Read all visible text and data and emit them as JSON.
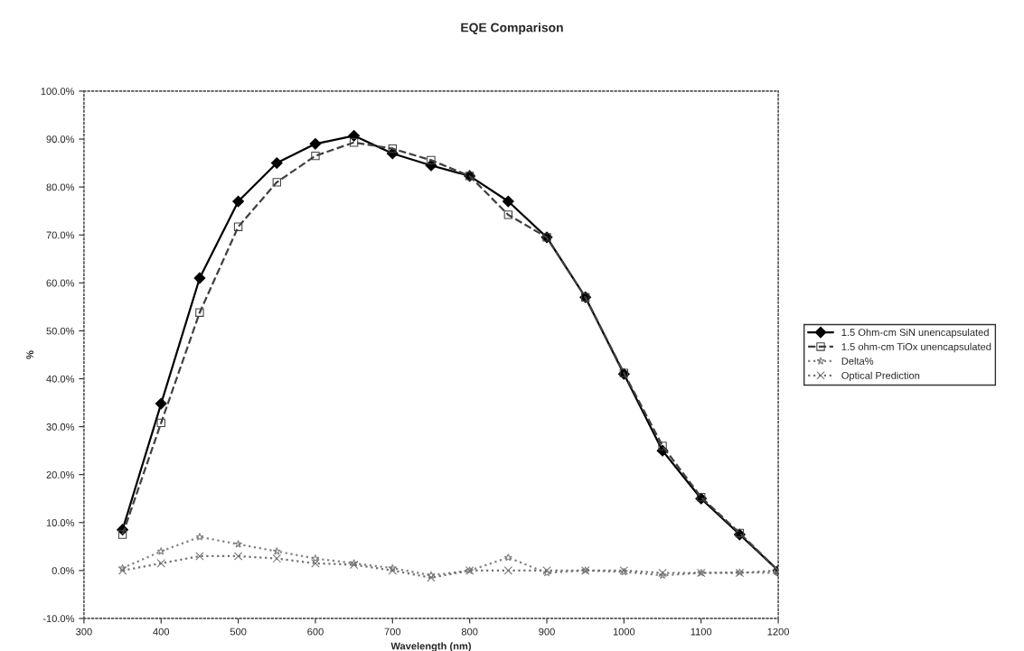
{
  "chart_data": {
    "type": "line",
    "title": "EQE Comparison",
    "xlabel": "Wavelength (nm)",
    "ylabel": "%",
    "x": [
      350,
      400,
      450,
      500,
      550,
      600,
      650,
      700,
      750,
      800,
      850,
      900,
      950,
      1000,
      1050,
      1100,
      1150,
      1200
    ],
    "series": [
      {
        "name": "1.5 Ohm-cm SiN unencapsulated",
        "color": "#000000",
        "marker": "diamond",
        "line_style": "solid",
        "values": [
          8.5,
          34.8,
          61,
          77,
          85,
          89,
          90.7,
          87,
          84.5,
          82.3,
          77,
          69.5,
          57,
          41,
          25,
          15,
          7.5,
          0
        ]
      },
      {
        "name": "1.5 ohm-cm TiOx unencapsulated",
        "color": "#404040",
        "marker": "square",
        "line_style": "dashed",
        "values": [
          7.5,
          30.8,
          53.8,
          71.7,
          81,
          86.5,
          89.3,
          88,
          85.6,
          82.3,
          74.2,
          69.5,
          57,
          41.2,
          26,
          15.3,
          7.8,
          0
        ]
      },
      {
        "name": "Delta%",
        "color": "#808080",
        "marker": "star",
        "line_style": "dotted",
        "values": [
          0.5,
          4,
          7,
          5.5,
          4,
          2.5,
          1.5,
          0.5,
          -1,
          0,
          2.7,
          -0.5,
          0,
          -0.3,
          -1,
          -0.5,
          -0.4,
          -0.5
        ]
      },
      {
        "name": "Optical Prediction",
        "color": "#707070",
        "marker": "cross",
        "line_style": "dotted",
        "values": [
          0,
          1.5,
          3,
          3,
          2.5,
          1.5,
          1.2,
          0,
          -1.5,
          0,
          0,
          0,
          0,
          0,
          -0.5,
          -0.5,
          -0.5,
          0
        ]
      }
    ],
    "xlim": [
      300,
      1200
    ],
    "xticks": [
      300,
      400,
      500,
      600,
      700,
      800,
      900,
      1000,
      1100,
      1200
    ],
    "ylim": [
      -10,
      100
    ],
    "yticks": [
      {
        "value": -10,
        "label": "-10.0%"
      },
      {
        "value": 0,
        "label": "0.0%"
      },
      {
        "value": 10,
        "label": "10.0%"
      },
      {
        "value": 20,
        "label": "20.0%"
      },
      {
        "value": 30,
        "label": "30.0%"
      },
      {
        "value": 40,
        "label": "40.0%"
      },
      {
        "value": 50,
        "label": "50.0%"
      },
      {
        "value": 60,
        "label": "60.0%"
      },
      {
        "value": 70,
        "label": "70.0%"
      },
      {
        "value": 80,
        "label": "80.0%"
      },
      {
        "value": 90,
        "label": "90.0%"
      },
      {
        "value": 100,
        "label": "100.0%"
      }
    ],
    "grid": false,
    "legend": "right"
  }
}
